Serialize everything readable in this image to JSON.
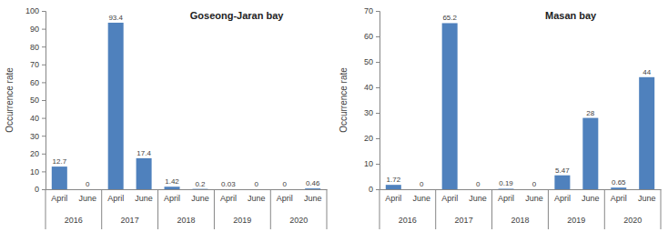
{
  "chart_data": [
    {
      "type": "bar",
      "title": "Goseong-Jaran bay",
      "y_label": "Occurrence rate",
      "categories": [
        "April",
        "June",
        "April",
        "June",
        "April",
        "June",
        "April",
        "June",
        "April",
        "June"
      ],
      "groups": [
        "2016",
        "2016",
        "2017",
        "2017",
        "2018",
        "2018",
        "2019",
        "2019",
        "2020",
        "2020"
      ],
      "values": [
        12.7,
        0,
        93.4,
        17.4,
        1.42,
        0.2,
        0.03,
        0,
        0,
        0.46
      ],
      "color": "#4f81bd",
      "ylim": [
        0,
        100
      ],
      "yticks": [
        0,
        10,
        20,
        30,
        40,
        50,
        60,
        70,
        80,
        90,
        100
      ],
      "grid": false,
      "data_labels": true
    },
    {
      "type": "bar",
      "title": "Masan bay",
      "y_label": "Occurrence rate",
      "categories": [
        "April",
        "June",
        "April",
        "June",
        "April",
        "June",
        "April",
        "June",
        "April",
        "June"
      ],
      "groups": [
        "2016",
        "2016",
        "2017",
        "2017",
        "2018",
        "2018",
        "2019",
        "2019",
        "2020",
        "2020"
      ],
      "values": [
        1.72,
        0,
        65.2,
        0,
        0.19,
        0,
        5.47,
        28,
        0.65,
        44
      ],
      "color": "#4f81bd",
      "ylim": [
        0,
        70
      ],
      "yticks": [
        0,
        10,
        20,
        30,
        40,
        50,
        60,
        70
      ],
      "grid": false,
      "data_labels": true
    }
  ]
}
